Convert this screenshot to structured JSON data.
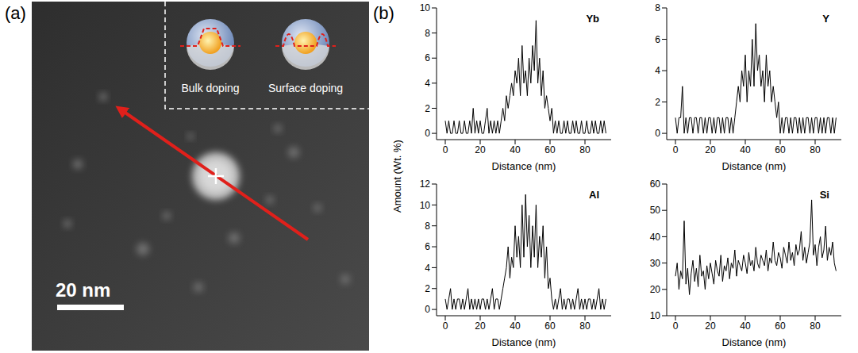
{
  "panel_a": {
    "label": "(a)",
    "scale_bar": "20 nm",
    "inset": [
      "Bulk doping",
      "Surface doping"
    ]
  },
  "panel_b": {
    "label": "(b)",
    "y_label": "Amount (Wt. %)"
  },
  "chart_data": [
    {
      "type": "line",
      "title": "Yb",
      "x_label": "Distance (nm)",
      "color": "#000000",
      "x": [
        0,
        1,
        2,
        3,
        4,
        5,
        6,
        7,
        8,
        9,
        10,
        11,
        12,
        13,
        14,
        15,
        16,
        17,
        18,
        19,
        20,
        21,
        22,
        23,
        24,
        25,
        26,
        27,
        28,
        29,
        30,
        31,
        32,
        33,
        34,
        35,
        36,
        37,
        38,
        39,
        40,
        41,
        42,
        43,
        44,
        45,
        46,
        47,
        48,
        49,
        50,
        51,
        52,
        53,
        54,
        55,
        56,
        57,
        58,
        59,
        60,
        61,
        62,
        63,
        64,
        65,
        66,
        67,
        68,
        69,
        70,
        71,
        72,
        73,
        74,
        75,
        76,
        77,
        78,
        79,
        80,
        81,
        82,
        83,
        84,
        85,
        86,
        87,
        88,
        89,
        90,
        91,
        92
      ],
      "values": [
        1,
        0,
        1,
        0,
        0,
        1,
        0,
        0,
        1,
        0,
        0,
        1,
        0,
        0,
        1,
        0,
        2,
        0,
        1,
        0,
        1,
        0,
        0,
        1,
        2,
        0,
        1,
        0,
        1,
        0,
        1,
        0,
        1,
        2,
        1,
        3,
        2,
        3,
        4,
        3,
        5,
        4,
        6,
        3,
        7,
        4,
        5,
        3,
        6,
        4,
        7,
        5,
        9,
        4,
        6,
        3,
        5,
        2,
        3,
        2,
        1,
        2,
        0,
        1,
        0,
        1,
        0,
        0,
        1,
        0,
        1,
        0,
        0,
        1,
        0,
        1,
        0,
        0,
        1,
        0,
        0,
        1,
        0,
        0,
        1,
        0,
        1,
        0,
        0,
        1,
        0,
        1,
        0
      ],
      "xlim": [
        -5,
        95
      ],
      "xticks": [
        0,
        20,
        40,
        60,
        80
      ],
      "ylim": [
        -0.5,
        10
      ],
      "yticks": [
        0,
        2,
        4,
        6,
        8,
        10
      ]
    },
    {
      "type": "line",
      "title": "Y",
      "x_label": "Distance (nm)",
      "color": "#000000",
      "x": [
        0,
        1,
        2,
        3,
        4,
        5,
        6,
        7,
        8,
        9,
        10,
        11,
        12,
        13,
        14,
        15,
        16,
        17,
        18,
        19,
        20,
        21,
        22,
        23,
        24,
        25,
        26,
        27,
        28,
        29,
        30,
        31,
        32,
        33,
        34,
        35,
        36,
        37,
        38,
        39,
        40,
        41,
        42,
        43,
        44,
        45,
        46,
        47,
        48,
        49,
        50,
        51,
        52,
        53,
        54,
        55,
        56,
        57,
        58,
        59,
        60,
        61,
        62,
        63,
        64,
        65,
        66,
        67,
        68,
        69,
        70,
        71,
        72,
        73,
        74,
        75,
        76,
        77,
        78,
        79,
        80,
        81,
        82,
        83,
        84,
        85,
        86,
        87,
        88,
        89,
        90,
        91,
        92
      ],
      "values": [
        1,
        0,
        1,
        1,
        3,
        0,
        1,
        0,
        1,
        1,
        0,
        1,
        1,
        0,
        1,
        1,
        0,
        1,
        0,
        1,
        1,
        0,
        1,
        0,
        1,
        1,
        0,
        1,
        0,
        1,
        1,
        0,
        1,
        0,
        1,
        2,
        3,
        2,
        4,
        3,
        5,
        2,
        4,
        3,
        6,
        3,
        7,
        4,
        5,
        3,
        4,
        2,
        5,
        3,
        4,
        2,
        3,
        2,
        1,
        2,
        0,
        1,
        0,
        1,
        1,
        0,
        1,
        0,
        1,
        1,
        0,
        1,
        0,
        1,
        0,
        1,
        1,
        0,
        1,
        0,
        1,
        1,
        0,
        1,
        0,
        1,
        0,
        1,
        1,
        0,
        1,
        0,
        1
      ],
      "xlim": [
        -5,
        95
      ],
      "xticks": [
        0,
        20,
        40,
        60,
        80
      ],
      "ylim": [
        -0.4,
        8
      ],
      "yticks": [
        0,
        2,
        4,
        6,
        8
      ]
    },
    {
      "type": "line",
      "title": "Al",
      "x_label": "Distance (nm)",
      "color": "#000000",
      "x": [
        0,
        1,
        2,
        3,
        4,
        5,
        6,
        7,
        8,
        9,
        10,
        11,
        12,
        13,
        14,
        15,
        16,
        17,
        18,
        19,
        20,
        21,
        22,
        23,
        24,
        25,
        26,
        27,
        28,
        29,
        30,
        31,
        32,
        33,
        34,
        35,
        36,
        37,
        38,
        39,
        40,
        41,
        42,
        43,
        44,
        45,
        46,
        47,
        48,
        49,
        50,
        51,
        52,
        53,
        54,
        55,
        56,
        57,
        58,
        59,
        60,
        61,
        62,
        63,
        64,
        65,
        66,
        67,
        68,
        69,
        70,
        71,
        72,
        73,
        74,
        75,
        76,
        77,
        78,
        79,
        80,
        81,
        82,
        83,
        84,
        85,
        86,
        87,
        88,
        89,
        90,
        91,
        92
      ],
      "values": [
        1,
        0,
        1,
        2,
        0,
        1,
        0,
        1,
        1,
        0,
        1,
        0,
        1,
        2,
        0,
        1,
        0,
        1,
        0,
        1,
        0,
        1,
        1,
        0,
        1,
        0,
        1,
        2,
        0,
        1,
        1,
        0,
        1,
        2,
        3,
        4,
        6,
        3,
        5,
        4,
        8,
        5,
        7,
        4,
        10,
        5,
        11,
        6,
        9,
        4,
        8,
        5,
        10,
        4,
        7,
        5,
        8,
        3,
        6,
        2,
        3,
        1,
        0,
        1,
        0,
        1,
        2,
        0,
        1,
        0,
        1,
        1,
        0,
        1,
        0,
        1,
        2,
        0,
        1,
        0,
        1,
        0,
        1,
        1,
        0,
        1,
        0,
        1,
        2,
        0,
        1,
        0,
        1
      ],
      "xlim": [
        -5,
        95
      ],
      "xticks": [
        0,
        20,
        40,
        60,
        80
      ],
      "ylim": [
        -0.6,
        12
      ],
      "yticks": [
        0,
        2,
        4,
        6,
        8,
        10,
        12
      ]
    },
    {
      "type": "line",
      "title": "Si",
      "x_label": "Distance (nm)",
      "color": "#000000",
      "x": [
        0,
        1,
        2,
        3,
        4,
        5,
        6,
        7,
        8,
        9,
        10,
        11,
        12,
        13,
        14,
        15,
        16,
        17,
        18,
        19,
        20,
        21,
        22,
        23,
        24,
        25,
        26,
        27,
        28,
        29,
        30,
        31,
        32,
        33,
        34,
        35,
        36,
        37,
        38,
        39,
        40,
        41,
        42,
        43,
        44,
        45,
        46,
        47,
        48,
        49,
        50,
        51,
        52,
        53,
        54,
        55,
        56,
        57,
        58,
        59,
        60,
        61,
        62,
        63,
        64,
        65,
        66,
        67,
        68,
        69,
        70,
        71,
        72,
        73,
        74,
        75,
        76,
        77,
        78,
        79,
        80,
        81,
        82,
        83,
        84,
        85,
        86,
        87,
        88,
        89,
        90,
        91,
        92
      ],
      "values": [
        25,
        30,
        20,
        27,
        24,
        46,
        22,
        28,
        18,
        26,
        31,
        23,
        28,
        21,
        33,
        25,
        27,
        20,
        29,
        24,
        30,
        26,
        22,
        31,
        27,
        25,
        33,
        23,
        29,
        27,
        32,
        24,
        30,
        28,
        35,
        25,
        31,
        29,
        27,
        33,
        30,
        26,
        34,
        29,
        31,
        27,
        36,
        30,
        28,
        33,
        31,
        29,
        35,
        27,
        32,
        30,
        38,
        31,
        29,
        34,
        32,
        28,
        36,
        33,
        30,
        38,
        31,
        34,
        29,
        37,
        33,
        35,
        42,
        31,
        36,
        30,
        34,
        38,
        54,
        33,
        37,
        29,
        36,
        40,
        32,
        35,
        44,
        31,
        36,
        33,
        38,
        30,
        27
      ],
      "xlim": [
        -5,
        95
      ],
      "xticks": [
        0,
        20,
        40,
        60,
        80
      ],
      "ylim": [
        10,
        60
      ],
      "yticks": [
        10,
        20,
        30,
        40,
        50,
        60
      ]
    }
  ]
}
